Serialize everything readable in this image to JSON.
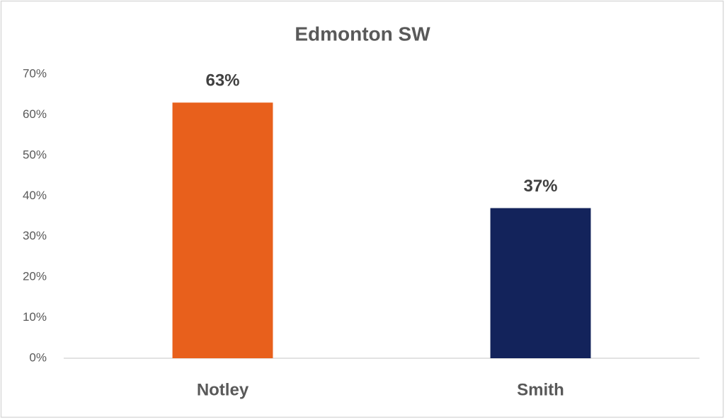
{
  "chart_data": {
    "type": "bar",
    "title": "Edmonton SW",
    "categories": [
      "Notley",
      "Smith"
    ],
    "values": [
      63,
      37
    ],
    "value_labels": [
      "63%",
      "37%"
    ],
    "colors": [
      "#e8601c",
      "#13235b"
    ],
    "ylim": [
      0,
      70
    ],
    "yticks": [
      {
        "value": 0,
        "label": "0%"
      },
      {
        "value": 10,
        "label": "10%"
      },
      {
        "value": 20,
        "label": "20%"
      },
      {
        "value": 30,
        "label": "30%"
      },
      {
        "value": 40,
        "label": "40%"
      },
      {
        "value": 50,
        "label": "50%"
      },
      {
        "value": 60,
        "label": "60%"
      },
      {
        "value": 70,
        "label": "70%"
      }
    ],
    "grid": false
  }
}
